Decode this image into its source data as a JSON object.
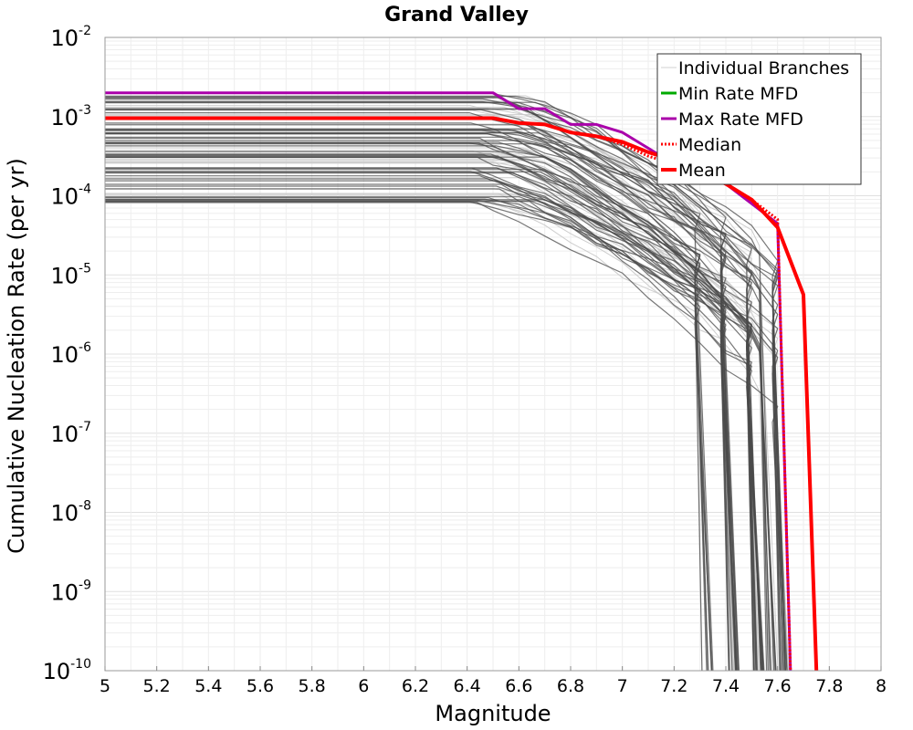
{
  "chart_data": {
    "type": "line",
    "title": "Grand Valley",
    "xlabel": "Magnitude",
    "ylabel": "Cumulative Nucleation Rate (per yr)",
    "xlim": [
      5,
      8
    ],
    "ylim_log10": [
      -10,
      -2
    ],
    "y_scale": "log",
    "x_ticks": [
      "5",
      "5.2",
      "5.4",
      "5.6",
      "5.8",
      "6",
      "6.2",
      "6.4",
      "6.6",
      "6.8",
      "7",
      "7.2",
      "7.4",
      "7.6",
      "7.8",
      "8"
    ],
    "y_ticks": [
      {
        "base": "10",
        "exp": "-2",
        "value": -2
      },
      {
        "base": "10",
        "exp": "-3",
        "value": -3
      },
      {
        "base": "10",
        "exp": "-4",
        "value": -4
      },
      {
        "base": "10",
        "exp": "-5",
        "value": -5
      },
      {
        "base": "10",
        "exp": "-6",
        "value": -6
      },
      {
        "base": "10",
        "exp": "-7",
        "value": -7
      },
      {
        "base": "10",
        "exp": "-8",
        "value": -8
      },
      {
        "base": "10",
        "exp": "-9",
        "value": -9
      },
      {
        "base": "10",
        "exp": "-10",
        "value": -10
      }
    ],
    "grid": true,
    "legend_position": "top-right",
    "legend": [
      {
        "label": "Individual Branches",
        "color": "#d0d0d0",
        "style": "solid",
        "width": 1
      },
      {
        "label": "Min Rate MFD",
        "color": "#00aa00",
        "style": "solid",
        "width": 3
      },
      {
        "label": "Max Rate MFD",
        "color": "#aa00aa",
        "style": "solid",
        "width": 3
      },
      {
        "label": "Median",
        "color": "#ff0000",
        "style": "dotted",
        "width": 3
      },
      {
        "label": "Mean",
        "color": "#ff0000",
        "style": "solid",
        "width": 4
      }
    ],
    "branch_color_light": "#c8c8c8",
    "branch_color_dark": "#4a4a4a",
    "branch_plateau_range_log10": [
      -4.1,
      -2.7
    ],
    "branch_cutoff_mags": [
      7.3,
      7.4,
      7.5,
      7.55,
      7.6
    ],
    "branch_count_dark": 60,
    "branch_count_light": 35,
    "series": [
      {
        "name": "Max Rate MFD",
        "color": "#aa00aa",
        "width": 3,
        "style": "solid",
        "x": [
          5.0,
          6.5,
          6.6,
          6.7,
          6.8,
          6.9,
          7.0,
          7.1,
          7.2,
          7.3,
          7.4,
          7.5,
          7.6,
          7.65
        ],
        "log10_y": [
          -2.7,
          -2.7,
          -2.9,
          -2.9,
          -3.1,
          -3.1,
          -3.2,
          -3.4,
          -3.6,
          -3.75,
          -3.85,
          -4.1,
          -4.35,
          -10.0
        ]
      },
      {
        "name": "Median",
        "color": "#ff0000",
        "width": 3,
        "style": "dotted",
        "x": [
          5.0,
          6.5,
          6.6,
          6.7,
          6.8,
          6.9,
          7.0,
          7.1,
          7.2,
          7.3,
          7.4,
          7.5,
          7.6,
          7.65
        ],
        "log10_y": [
          -3.02,
          -3.02,
          -3.08,
          -3.1,
          -3.2,
          -3.25,
          -3.35,
          -3.5,
          -3.6,
          -3.75,
          -3.85,
          -4.05,
          -4.3,
          -10.0
        ]
      },
      {
        "name": "Mean",
        "color": "#ff0000",
        "width": 4,
        "style": "solid",
        "x": [
          5.0,
          6.5,
          6.6,
          6.7,
          6.8,
          6.9,
          7.0,
          7.1,
          7.2,
          7.3,
          7.4,
          7.5,
          7.6,
          7.7,
          7.75
        ],
        "log10_y": [
          -3.02,
          -3.02,
          -3.08,
          -3.1,
          -3.2,
          -3.25,
          -3.32,
          -3.45,
          -3.55,
          -3.7,
          -3.85,
          -4.05,
          -4.4,
          -5.25,
          -10.0
        ]
      }
    ]
  }
}
